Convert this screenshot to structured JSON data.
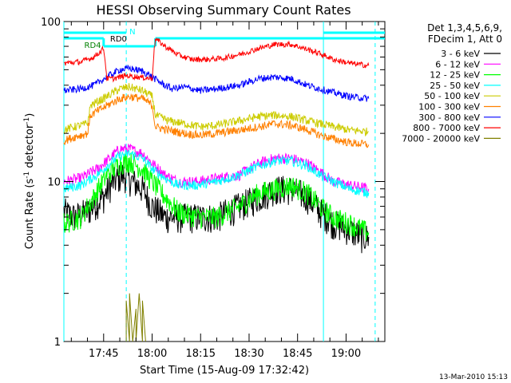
{
  "chart_data": {
    "type": "line",
    "title": "HESSI Observing Summary Count Rates",
    "xlabel": "Start Time (15-Aug-09 17:32:42)",
    "ylabel_main": "Count Rate (s",
    "ylabel_exp1": "-1",
    "ylabel_mid": " detector",
    "ylabel_exp2": "-1",
    "ylabel_end": ")",
    "y_scale": "log",
    "ylim": [
      1,
      100
    ],
    "xlim": [
      "17:32:42",
      "19:12"
    ],
    "x_ticks": [
      "17:45",
      "18:00",
      "18:15",
      "18:30",
      "18:45",
      "19:00"
    ],
    "y_tick_labels": [
      "1",
      "10",
      "100"
    ],
    "footer": "13-Mar-2010 15:13",
    "legend_header": [
      "Det 1,3,4,5,6,9,",
      "FDecim 1, Att 0"
    ],
    "legend_position": "right",
    "attenuator_labels": {
      "rd0": "RD0",
      "rd4": "RD4",
      "n": "N"
    },
    "attenuator_colors": {
      "rd0": "#00ffff",
      "rd4": "#008000",
      "n": "#00ffff"
    },
    "vertical_markers": [
      {
        "time": "17:32:42",
        "color": "#00ffff",
        "style": "solid"
      },
      {
        "time": "17:52",
        "color": "#00ffff",
        "style": "dashed"
      },
      {
        "time": "18:53",
        "color": "#00ffff",
        "style": "solid"
      },
      {
        "time": "19:09",
        "color": "#00ffff",
        "style": "dashed"
      }
    ],
    "series": [
      {
        "name": "3 - 6 keV",
        "color": "#000000",
        "points": [
          [
            "17:32:42",
            6.5
          ],
          [
            "17:36",
            6.0
          ],
          [
            "17:40",
            6.5
          ],
          [
            "17:45",
            8.0
          ],
          [
            "17:48",
            10.0
          ],
          [
            "17:51",
            11.0
          ],
          [
            "17:54",
            10.0
          ],
          [
            "17:57",
            9.0
          ],
          [
            "18:00",
            7.0
          ],
          [
            "18:04",
            6.0
          ],
          [
            "18:08",
            6.0
          ],
          [
            "18:14",
            6.0
          ],
          [
            "18:20",
            6.0
          ],
          [
            "18:27",
            7.0
          ],
          [
            "18:33",
            8.0
          ],
          [
            "18:38",
            9.0
          ],
          [
            "18:43",
            9.0
          ],
          [
            "18:48",
            8.0
          ],
          [
            "18:52",
            6.5
          ],
          [
            "18:56",
            5.5
          ],
          [
            "19:01",
            5.0
          ],
          [
            "19:05",
            4.5
          ],
          [
            "19:07",
            4.5
          ]
        ]
      },
      {
        "name": "6 - 12 keV",
        "color": "#ff00ff",
        "points": [
          [
            "17:32:42",
            10.0
          ],
          [
            "17:38",
            10.5
          ],
          [
            "17:43",
            12.0
          ],
          [
            "17:47",
            14.0
          ],
          [
            "17:50",
            16.0
          ],
          [
            "17:53",
            16.0
          ],
          [
            "17:57",
            15.0
          ],
          [
            "18:00",
            13.0
          ],
          [
            "18:04",
            11.0
          ],
          [
            "18:08",
            10.0
          ],
          [
            "18:14",
            10.0
          ],
          [
            "18:20",
            10.5
          ],
          [
            "18:27",
            11.0
          ],
          [
            "18:33",
            13.0
          ],
          [
            "18:38",
            14.0
          ],
          [
            "18:43",
            14.0
          ],
          [
            "18:48",
            13.0
          ],
          [
            "18:52",
            11.5
          ],
          [
            "18:56",
            10.0
          ],
          [
            "19:01",
            9.5
          ],
          [
            "19:07",
            9.0
          ]
        ]
      },
      {
        "name": "12 - 25 keV",
        "color": "#00ff00",
        "points": [
          [
            "17:32:42",
            5.5
          ],
          [
            "17:38",
            6.0
          ],
          [
            "17:42",
            8.0
          ],
          [
            "17:46",
            11.0
          ],
          [
            "17:50",
            13.0
          ],
          [
            "17:53",
            13.5
          ],
          [
            "17:57",
            12.0
          ],
          [
            "18:00",
            10.0
          ],
          [
            "18:04",
            8.0
          ],
          [
            "18:08",
            6.5
          ],
          [
            "18:14",
            6.0
          ],
          [
            "18:20",
            6.0
          ],
          [
            "18:27",
            7.0
          ],
          [
            "18:33",
            8.5
          ],
          [
            "18:38",
            9.0
          ],
          [
            "18:43",
            9.5
          ],
          [
            "18:48",
            8.5
          ],
          [
            "18:52",
            7.0
          ],
          [
            "18:56",
            6.0
          ],
          [
            "19:01",
            5.5
          ],
          [
            "19:07",
            4.8
          ]
        ]
      },
      {
        "name": "25 - 50 keV",
        "color": "#00ffff",
        "points": [
          [
            "17:32:42",
            9.0
          ],
          [
            "17:38",
            9.5
          ],
          [
            "17:43",
            11.0
          ],
          [
            "17:47",
            13.0
          ],
          [
            "17:50",
            14.5
          ],
          [
            "17:53",
            15.0
          ],
          [
            "17:57",
            14.0
          ],
          [
            "18:00",
            12.0
          ],
          [
            "18:04",
            10.5
          ],
          [
            "18:08",
            9.5
          ],
          [
            "18:14",
            9.5
          ],
          [
            "18:20",
            10.0
          ],
          [
            "18:27",
            11.0
          ],
          [
            "18:33",
            12.5
          ],
          [
            "18:38",
            13.5
          ],
          [
            "18:43",
            13.5
          ],
          [
            "18:48",
            12.5
          ],
          [
            "18:52",
            11.0
          ],
          [
            "18:56",
            10.0
          ],
          [
            "19:01",
            9.0
          ],
          [
            "19:07",
            8.5
          ]
        ]
      },
      {
        "name": "50 - 100 keV",
        "color": "#cccc00",
        "points": [
          [
            "17:32:42",
            21.0
          ],
          [
            "17:36",
            22.0
          ],
          [
            "17:40",
            23.0
          ],
          [
            "17:41",
            30.0
          ],
          [
            "17:45",
            33.0
          ],
          [
            "17:50",
            38.0
          ],
          [
            "17:53",
            39.0
          ],
          [
            "17:57",
            37.0
          ],
          [
            "18:00",
            34.0
          ],
          [
            "18:01",
            26.0
          ],
          [
            "18:05",
            24.0
          ],
          [
            "18:10",
            23.0
          ],
          [
            "18:15",
            22.0
          ],
          [
            "18:20",
            22.5
          ],
          [
            "18:27",
            24.0
          ],
          [
            "18:33",
            25.5
          ],
          [
            "18:38",
            26.0
          ],
          [
            "18:43",
            25.5
          ],
          [
            "18:48",
            24.0
          ],
          [
            "18:52",
            23.0
          ],
          [
            "18:56",
            22.0
          ],
          [
            "19:01",
            21.0
          ],
          [
            "19:07",
            20.5
          ]
        ]
      },
      {
        "name": "100 - 300 keV",
        "color": "#ff8000",
        "points": [
          [
            "17:32:42",
            18.0
          ],
          [
            "17:36",
            19.0
          ],
          [
            "17:40",
            20.0
          ],
          [
            "17:41",
            26.0
          ],
          [
            "17:45",
            29.0
          ],
          [
            "17:50",
            33.0
          ],
          [
            "17:53",
            34.0
          ],
          [
            "17:57",
            33.0
          ],
          [
            "18:00",
            30.0
          ],
          [
            "18:01",
            22.0
          ],
          [
            "18:05",
            21.0
          ],
          [
            "18:10",
            20.0
          ],
          [
            "18:15",
            19.5
          ],
          [
            "18:20",
            20.0
          ],
          [
            "18:27",
            21.0
          ],
          [
            "18:33",
            22.0
          ],
          [
            "18:38",
            23.0
          ],
          [
            "18:43",
            22.5
          ],
          [
            "18:48",
            21.0
          ],
          [
            "18:52",
            19.5
          ],
          [
            "18:56",
            18.5
          ],
          [
            "19:01",
            17.5
          ],
          [
            "19:07",
            17.0
          ]
        ]
      },
      {
        "name": "300 - 800 keV",
        "color": "#0000ff",
        "points": [
          [
            "17:32:42",
            37.0
          ],
          [
            "17:38",
            38.0
          ],
          [
            "17:42",
            40.0
          ],
          [
            "17:46",
            45.0
          ],
          [
            "17:50",
            50.0
          ],
          [
            "17:53",
            51.0
          ],
          [
            "17:57",
            49.0
          ],
          [
            "18:00",
            45.0
          ],
          [
            "18:03",
            41.0
          ],
          [
            "18:06",
            38.0
          ],
          [
            "18:10",
            39.0
          ],
          [
            "18:15",
            37.0
          ],
          [
            "18:20",
            38.0
          ],
          [
            "18:27",
            40.0
          ],
          [
            "18:33",
            44.0
          ],
          [
            "18:38",
            45.0
          ],
          [
            "18:43",
            44.0
          ],
          [
            "18:48",
            40.0
          ],
          [
            "18:52",
            38.0
          ],
          [
            "18:56",
            36.0
          ],
          [
            "19:01",
            34.0
          ],
          [
            "19:07",
            33.0
          ]
        ]
      },
      {
        "name": "800 - 7000 keV",
        "color": "#ff0000",
        "points": [
          [
            "17:32:42",
            55.0
          ],
          [
            "17:38",
            56.0
          ],
          [
            "17:42",
            60.0
          ],
          [
            "17:44",
            65.0
          ],
          [
            "17:45",
            68.0
          ],
          [
            "17:46",
            44.0
          ],
          [
            "17:48",
            44.0
          ],
          [
            "17:52",
            46.0
          ],
          [
            "17:56",
            45.0
          ],
          [
            "18:00",
            44.0
          ],
          [
            "18:01",
            78.0
          ],
          [
            "18:04",
            70.0
          ],
          [
            "18:08",
            62.0
          ],
          [
            "18:12",
            58.0
          ],
          [
            "18:17",
            58.0
          ],
          [
            "18:22",
            59.0
          ],
          [
            "18:28",
            63.0
          ],
          [
            "18:33",
            68.0
          ],
          [
            "18:38",
            72.0
          ],
          [
            "18:43",
            72.0
          ],
          [
            "18:48",
            67.0
          ],
          [
            "18:52",
            63.0
          ],
          [
            "18:56",
            58.0
          ],
          [
            "19:01",
            55.0
          ],
          [
            "19:07",
            53.0
          ]
        ]
      },
      {
        "name": "7000 - 20000 keV",
        "color": "#808000",
        "points": [
          [
            "17:52",
            1.0
          ],
          [
            "17:52",
            1.8
          ],
          [
            "17:53",
            1.0
          ],
          [
            "17:53",
            2.0
          ],
          [
            "17:54",
            1.0
          ],
          [
            "17:55",
            1.6
          ],
          [
            "17:55",
            1.0
          ],
          [
            "17:56",
            2.0
          ],
          [
            "17:57",
            1.0
          ],
          [
            "17:57",
            1.8
          ],
          [
            "17:58",
            1.0
          ]
        ]
      }
    ]
  }
}
